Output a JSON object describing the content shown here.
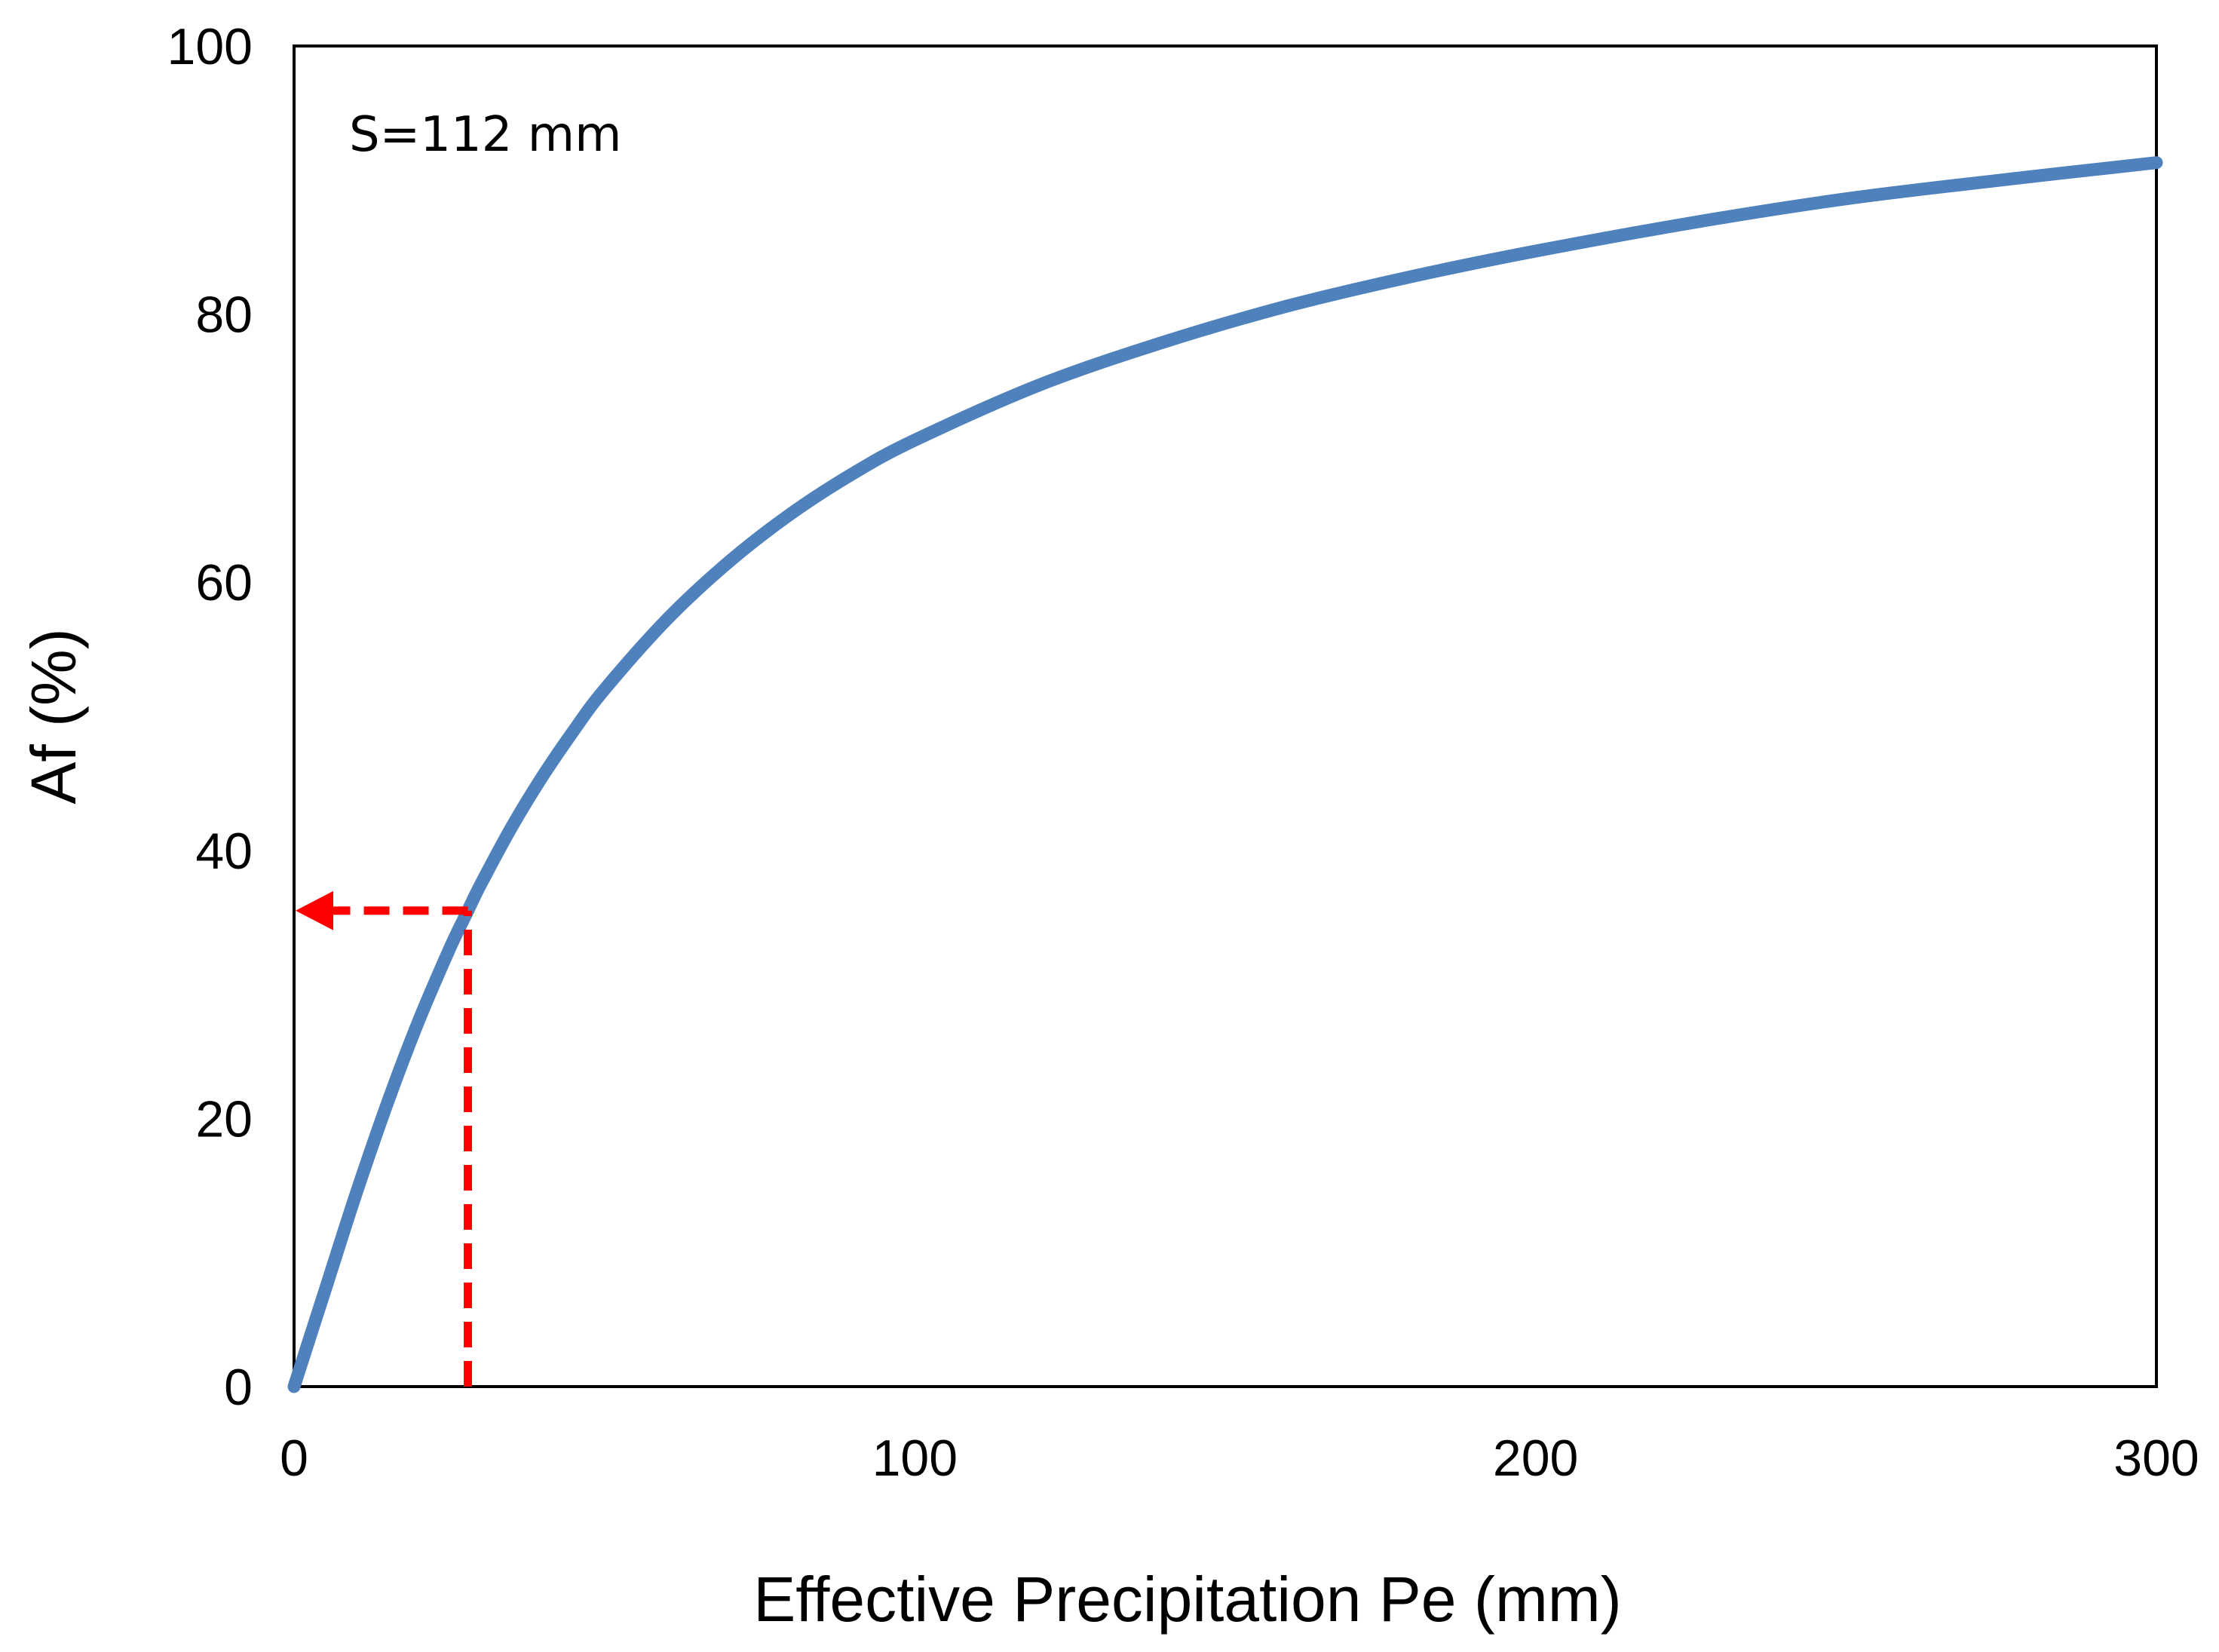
{
  "chart_data": {
    "type": "line",
    "title": "",
    "xlabel": "Effective Precipitation Pe (mm)",
    "ylabel": "Af (%)",
    "xlim": [
      0,
      300
    ],
    "ylim": [
      0,
      100
    ],
    "x_ticks": [
      0,
      100,
      200,
      300
    ],
    "x_tick_labels": [
      "0",
      "100",
      "200",
      "300"
    ],
    "y_ticks": [
      0,
      20,
      40,
      60,
      80,
      100
    ],
    "y_tick_labels": [
      "0",
      "20",
      "40",
      "60",
      "80",
      "100"
    ],
    "grid": false,
    "legend": "none",
    "annotation": "S=112 mm",
    "series": [
      {
        "name": "Af",
        "color": "#4F81BD",
        "x": [
          0,
          5,
          10,
          15,
          20,
          25,
          28,
          30,
          35,
          40,
          45,
          50,
          60,
          70,
          80,
          90,
          100,
          120,
          140,
          160,
          180,
          200,
          225,
          250,
          275,
          300
        ],
        "y": [
          0,
          7.2,
          14.4,
          21.1,
          27.2,
          32.6,
          35.5,
          37.4,
          41.7,
          45.5,
          48.9,
          52.0,
          57.2,
          61.5,
          65.1,
          68.1,
          70.6,
          74.7,
          77.9,
          80.6,
          82.8,
          84.7,
          86.8,
          88.6,
          90.0,
          91.3
        ]
      }
    ],
    "reference_lines": {
      "color": "#FF0000",
      "x_value": 28,
      "y_value": 35.5,
      "style": "dashed",
      "arrow_toward": "y-axis"
    }
  }
}
